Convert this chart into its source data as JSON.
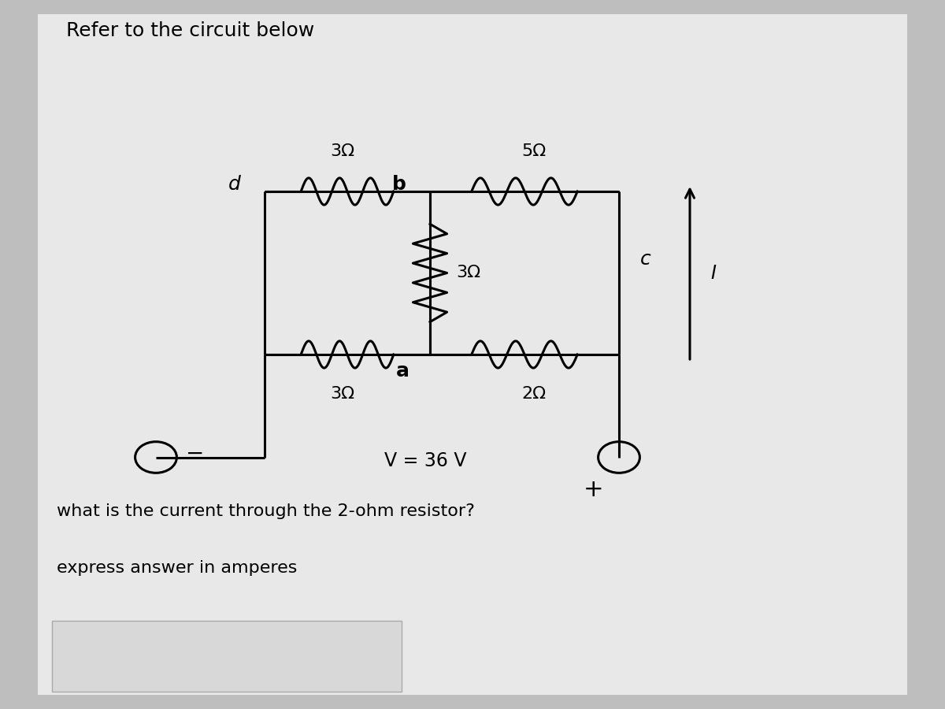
{
  "title": "Refer to the circuit below",
  "question": "what is the current through the 2-ohm resistor?",
  "subtext": "express answer in amperes",
  "bg_color": "#bebebe",
  "panel_color": "#e8e8e8",
  "text_color": "#000000",
  "voltage_label": "V = 36 V",
  "res_top_left": "3Ω",
  "res_top_right": "5Ω",
  "res_middle": "3Ω",
  "res_bot_left": "3Ω",
  "res_bot_right": "2Ω",
  "node_b": "b",
  "node_d": "d",
  "node_c": "c",
  "node_a": "a",
  "current_label": "I"
}
